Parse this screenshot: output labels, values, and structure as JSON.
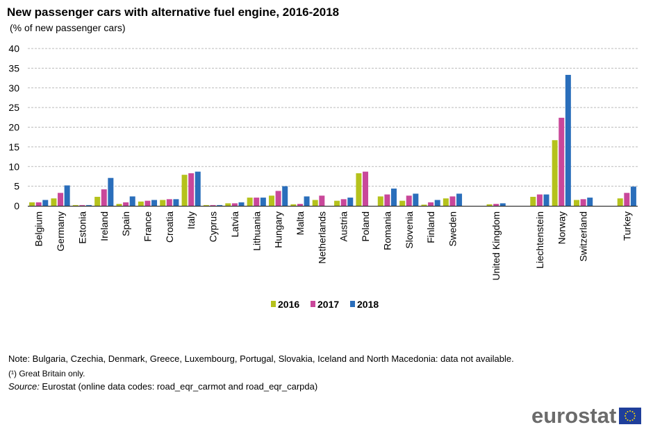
{
  "chart_data": {
    "type": "bar",
    "title": "New passenger cars with alternative fuel engine, 2016-2018",
    "subtitle": "(% of new passenger cars)",
    "ylim": [
      0,
      40
    ],
    "yticks": [
      0,
      5,
      10,
      15,
      20,
      25,
      30,
      35,
      40
    ],
    "grid": true,
    "legend_position": "bottom",
    "categories": [
      "Belgium",
      "Germany",
      "Estonia",
      "Ireland",
      "Spain",
      "France",
      "Croatia",
      "Italy",
      "Cyprus",
      "Latvia",
      "Lithuania",
      "Hungary",
      "Malta",
      "Netherlands",
      "Austria",
      "Poland",
      "Romania",
      "Slovenia",
      "Finland",
      "Sweden",
      "United Kingdom",
      "Liechtenstein",
      "Norway",
      "Switzerland",
      "Turkey"
    ],
    "series": [
      {
        "name": "2016",
        "color": "#b5c21c",
        "values": [
          0.9,
          1.9,
          0.2,
          2.3,
          0.5,
          1.1,
          1.5,
          7.9,
          0.2,
          0.65,
          2.1,
          2.6,
          0.4,
          1.5,
          1.3,
          8.3,
          2.4,
          1.3,
          0.3,
          1.9,
          0.4,
          2.3,
          16.7,
          1.5,
          1.9
        ]
      },
      {
        "name": "2017",
        "color": "#c9479a",
        "values": [
          0.9,
          3.3,
          0.2,
          4.2,
          0.9,
          1.3,
          1.7,
          8.3,
          0.2,
          0.65,
          2.1,
          3.8,
          0.5,
          2.6,
          1.7,
          8.7,
          2.9,
          2.6,
          0.9,
          2.4,
          0.5,
          2.9,
          22.4,
          1.7,
          3.3
        ]
      },
      {
        "name": "2018",
        "color": "#2a6ebb",
        "values": [
          1.5,
          5.2,
          0.2,
          7.1,
          2.4,
          1.5,
          1.7,
          8.7,
          0.2,
          0.9,
          2.1,
          5.0,
          2.4,
          null,
          2.1,
          null,
          4.4,
          3.1,
          1.5,
          3.1,
          0.65,
          2.9,
          33.3,
          2.1,
          4.9
        ]
      }
    ]
  },
  "notes": {
    "note": "Note: Bulgaria, Czechia, Denmark, Greece, Luxembourg, Portugal, Slovakia, Iceland and North Macedonia: data not available.",
    "footnote": "(¹) Great Britain only.",
    "source_label": "Source:",
    "source_text": " Eurostat (online data codes: road_eqr_carmot and road_eqr_carpda)"
  },
  "logo": {
    "text": "eurostat"
  }
}
